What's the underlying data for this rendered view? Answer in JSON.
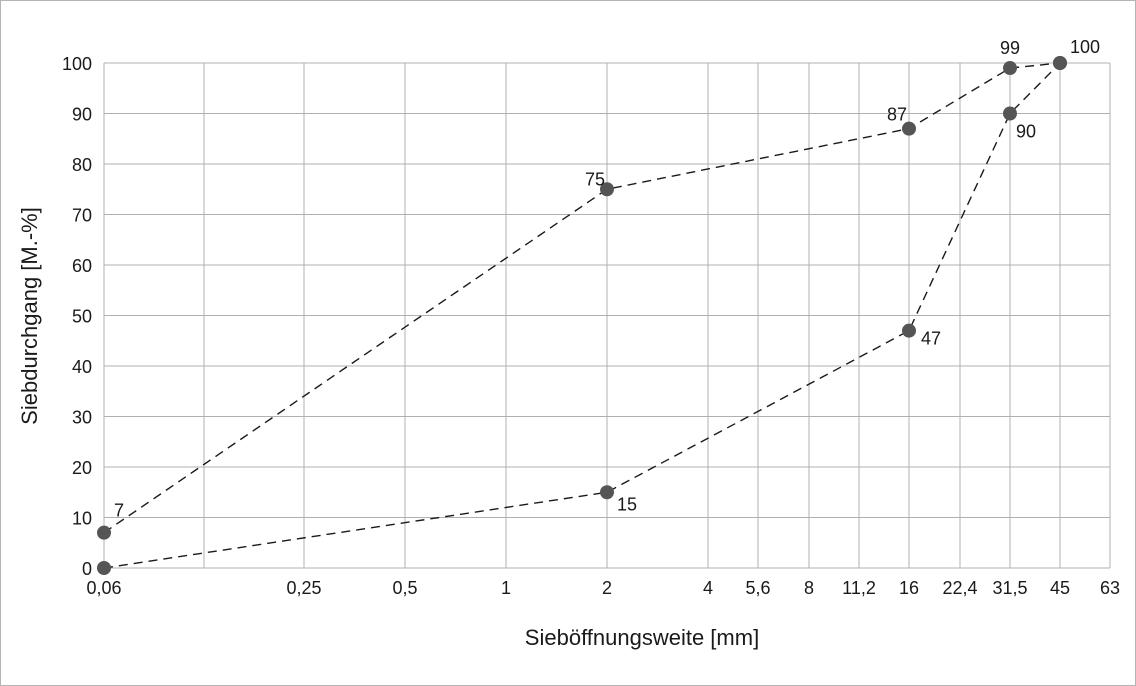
{
  "chart_data": {
    "type": "line",
    "xlabel": "Sieböffnungsweite [mm]",
    "ylabel": "Siebdurchgang [M.-%]",
    "x_scale": "categorical sieve sizes",
    "x_ticks": [
      "0,06",
      "0,25",
      "0,5",
      "1",
      "2",
      "4",
      "5,6",
      "8",
      "11,2",
      "16",
      "22,4",
      "31,5",
      "45",
      "63"
    ],
    "y_ticks": [
      "0",
      "10",
      "20",
      "30",
      "40",
      "50",
      "60",
      "70",
      "80",
      "90",
      "100"
    ],
    "ylim": [
      0,
      100
    ],
    "grid": true,
    "extra_vertical_gridline_between": [
      "0,06",
      "0,25"
    ],
    "line_style": "dashed",
    "series": [
      {
        "x": [
          "0,06",
          "2",
          "16",
          "31,5",
          "45"
        ],
        "values": [
          7,
          75,
          87,
          99,
          100
        ],
        "labels": [
          "7",
          "75",
          "87",
          "99",
          "100"
        ]
      },
      {
        "x": [
          "0,06",
          "2",
          "16",
          "31,5",
          "45"
        ],
        "values": [
          0,
          15,
          47,
          90,
          100
        ],
        "labels": [
          "",
          "15",
          "47",
          "90",
          ""
        ]
      }
    ],
    "colors": {
      "marker": "#555555",
      "line": "#1a1a1a",
      "grid": "#b0b0b0",
      "text": "#1a1a1a"
    }
  }
}
